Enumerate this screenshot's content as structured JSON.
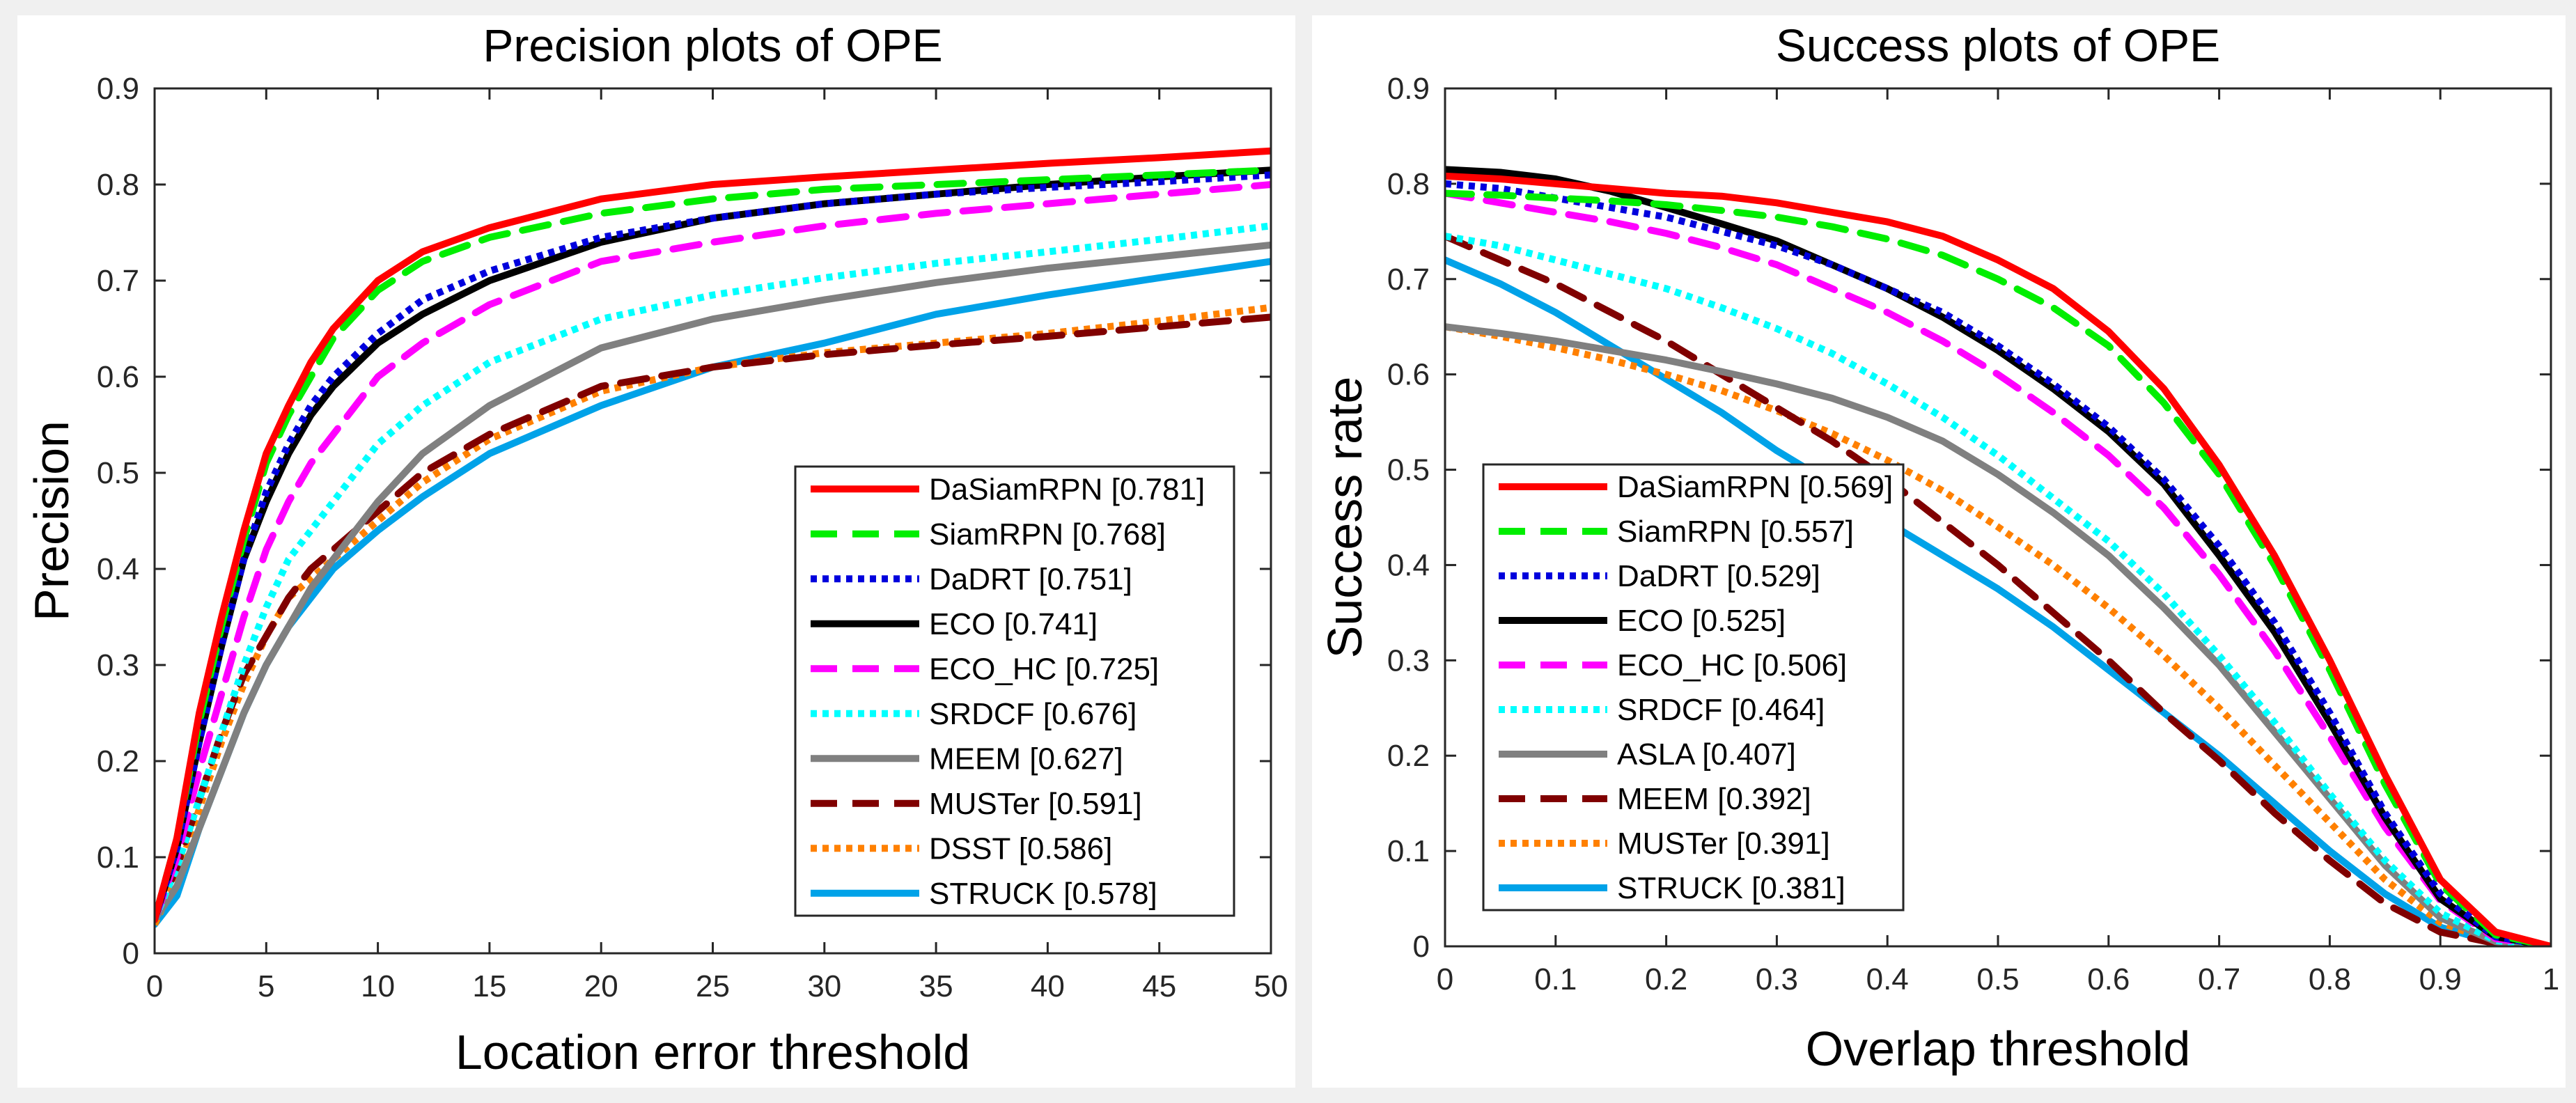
{
  "chart_data": [
    {
      "type": "line",
      "title": "Precision plots of OPE",
      "xlabel": "Location error threshold",
      "ylabel": "Precision",
      "xlim": [
        0,
        50
      ],
      "ylim": [
        0,
        0.9
      ],
      "xticks": [
        0,
        5,
        10,
        15,
        20,
        25,
        30,
        35,
        40,
        45,
        50
      ],
      "xtick_labels": [
        "0",
        "5",
        "10",
        "15",
        "20",
        "25",
        "30",
        "35",
        "40",
        "45",
        "50"
      ],
      "yticks": [
        0,
        0.1,
        0.2,
        0.3,
        0.4,
        0.5,
        0.6,
        0.7,
        0.8,
        0.9
      ],
      "ytick_labels": [
        "0",
        "0.1",
        "0.2",
        "0.3",
        "0.4",
        "0.5",
        "0.6",
        "0.7",
        "0.8",
        "0.9"
      ],
      "legend_position": "lower-right",
      "x": [
        0,
        1,
        2,
        3,
        4,
        5,
        6,
        7,
        8,
        10,
        12,
        15,
        20,
        25,
        30,
        35,
        40,
        45,
        50
      ],
      "series": [
        {
          "name": "DaSiamRPN",
          "legend": "DaSiamRPN [0.781]",
          "color": "#ff0000",
          "dash": "solid",
          "values": [
            0.035,
            0.12,
            0.25,
            0.35,
            0.44,
            0.52,
            0.57,
            0.615,
            0.65,
            0.7,
            0.73,
            0.755,
            0.785,
            0.8,
            0.808,
            0.815,
            0.822,
            0.828,
            0.835
          ]
        },
        {
          "name": "SiamRPN",
          "legend": "SiamRPN [0.768]",
          "color": "#00ee00",
          "dash": "dashed",
          "values": [
            0.035,
            0.12,
            0.24,
            0.34,
            0.43,
            0.51,
            0.56,
            0.6,
            0.64,
            0.69,
            0.72,
            0.745,
            0.77,
            0.785,
            0.795,
            0.8,
            0.805,
            0.81,
            0.815
          ]
        },
        {
          "name": "DaDRT",
          "legend": "DaDRT [0.751]",
          "color": "#0000dd",
          "dash": "dotted",
          "values": [
            0.035,
            0.11,
            0.22,
            0.32,
            0.41,
            0.48,
            0.53,
            0.57,
            0.6,
            0.645,
            0.68,
            0.71,
            0.745,
            0.765,
            0.78,
            0.79,
            0.797,
            0.803,
            0.81
          ]
        },
        {
          "name": "ECO",
          "legend": "ECO [0.741]",
          "color": "#000000",
          "dash": "solid",
          "values": [
            0.035,
            0.11,
            0.22,
            0.32,
            0.41,
            0.47,
            0.52,
            0.56,
            0.59,
            0.635,
            0.665,
            0.7,
            0.74,
            0.765,
            0.78,
            0.79,
            0.8,
            0.808,
            0.815
          ]
        },
        {
          "name": "ECO_HC",
          "legend": "ECO_HC [0.725]",
          "color": "#ff00ff",
          "dash": "dashed",
          "values": [
            0.035,
            0.1,
            0.19,
            0.27,
            0.35,
            0.42,
            0.47,
            0.51,
            0.54,
            0.6,
            0.635,
            0.675,
            0.72,
            0.74,
            0.757,
            0.77,
            0.78,
            0.79,
            0.8
          ]
        },
        {
          "name": "SRDCF",
          "legend": "SRDCF [0.676]",
          "color": "#00ffff",
          "dash": "dotted",
          "values": [
            0.035,
            0.09,
            0.16,
            0.23,
            0.3,
            0.36,
            0.41,
            0.44,
            0.47,
            0.53,
            0.57,
            0.615,
            0.66,
            0.685,
            0.703,
            0.718,
            0.73,
            0.743,
            0.757
          ]
        },
        {
          "name": "MEEM",
          "legend": "MEEM [0.627]",
          "color": "#808080",
          "dash": "solid",
          "values": [
            0.035,
            0.07,
            0.13,
            0.19,
            0.25,
            0.3,
            0.34,
            0.38,
            0.41,
            0.47,
            0.52,
            0.57,
            0.63,
            0.66,
            0.68,
            0.698,
            0.713,
            0.725,
            0.737
          ]
        },
        {
          "name": "MUSTer",
          "legend": "MUSTer [0.591]",
          "color": "#800000",
          "dash": "dashed",
          "values": [
            0.035,
            0.09,
            0.16,
            0.23,
            0.29,
            0.33,
            0.37,
            0.4,
            0.42,
            0.46,
            0.5,
            0.54,
            0.59,
            0.61,
            0.623,
            0.633,
            0.642,
            0.652,
            0.662
          ]
        },
        {
          "name": "DSST",
          "legend": "DSST [0.586]",
          "color": "#ff8000",
          "dash": "dotted",
          "values": [
            0.03,
            0.08,
            0.15,
            0.22,
            0.28,
            0.33,
            0.37,
            0.39,
            0.41,
            0.45,
            0.49,
            0.535,
            0.585,
            0.61,
            0.625,
            0.635,
            0.645,
            0.658,
            0.672
          ]
        },
        {
          "name": "STRUCK",
          "legend": "STRUCK [0.578]",
          "color": "#00a2e8",
          "dash": "solid",
          "values": [
            0.03,
            0.06,
            0.13,
            0.19,
            0.25,
            0.3,
            0.34,
            0.37,
            0.4,
            0.44,
            0.475,
            0.52,
            0.57,
            0.61,
            0.635,
            0.665,
            0.685,
            0.703,
            0.72
          ]
        }
      ]
    },
    {
      "type": "line",
      "title": "Success plots of OPE",
      "xlabel": "Overlap threshold",
      "ylabel": "Success rate",
      "xlim": [
        0,
        1
      ],
      "ylim": [
        0,
        0.9
      ],
      "xticks": [
        0,
        0.1,
        0.2,
        0.3,
        0.4,
        0.5,
        0.6,
        0.7,
        0.8,
        0.9,
        1
      ],
      "xtick_labels": [
        "0",
        "0.1",
        "0.2",
        "0.3",
        "0.4",
        "0.5",
        "0.6",
        "0.7",
        "0.8",
        "0.9",
        "1"
      ],
      "yticks": [
        0,
        0.1,
        0.2,
        0.3,
        0.4,
        0.5,
        0.6,
        0.7,
        0.8,
        0.9
      ],
      "ytick_labels": [
        "0",
        "0.1",
        "0.2",
        "0.3",
        "0.4",
        "0.5",
        "0.6",
        "0.7",
        "0.8",
        "0.9"
      ],
      "legend_position": "lower-left",
      "x": [
        0,
        0.05,
        0.1,
        0.15,
        0.2,
        0.25,
        0.3,
        0.35,
        0.4,
        0.45,
        0.5,
        0.55,
        0.6,
        0.65,
        0.7,
        0.75,
        0.8,
        0.85,
        0.9,
        0.95,
        1
      ],
      "series": [
        {
          "name": "DaSiamRPN",
          "legend": "DaSiamRPN [0.569]",
          "color": "#ff0000",
          "dash": "solid",
          "values": [
            0.808,
            0.805,
            0.8,
            0.795,
            0.79,
            0.787,
            0.78,
            0.77,
            0.76,
            0.745,
            0.72,
            0.69,
            0.645,
            0.585,
            0.505,
            0.41,
            0.3,
            0.18,
            0.07,
            0.015,
            0
          ]
        },
        {
          "name": "SiamRPN",
          "legend": "SiamRPN [0.557]",
          "color": "#00ee00",
          "dash": "dashed",
          "values": [
            0.79,
            0.788,
            0.785,
            0.782,
            0.778,
            0.772,
            0.765,
            0.755,
            0.742,
            0.725,
            0.7,
            0.67,
            0.63,
            0.57,
            0.495,
            0.4,
            0.29,
            0.17,
            0.065,
            0.012,
            0
          ]
        },
        {
          "name": "DaDRT",
          "legend": "DaDRT [0.529]",
          "color": "#0000dd",
          "dash": "dotted",
          "values": [
            0.8,
            0.795,
            0.785,
            0.775,
            0.765,
            0.75,
            0.735,
            0.715,
            0.69,
            0.665,
            0.63,
            0.59,
            0.545,
            0.49,
            0.42,
            0.34,
            0.245,
            0.14,
            0.055,
            0.01,
            0
          ]
        },
        {
          "name": "ECO",
          "legend": "ECO [0.525]",
          "color": "#000000",
          "dash": "solid",
          "values": [
            0.815,
            0.812,
            0.805,
            0.792,
            0.775,
            0.758,
            0.74,
            0.715,
            0.69,
            0.66,
            0.625,
            0.585,
            0.54,
            0.485,
            0.41,
            0.33,
            0.235,
            0.135,
            0.05,
            0.01,
            0
          ]
        },
        {
          "name": "ECO_HC",
          "legend": "ECO_HC [0.506]",
          "color": "#ff00ff",
          "dash": "dashed",
          "values": [
            0.79,
            0.78,
            0.77,
            0.76,
            0.748,
            0.733,
            0.715,
            0.69,
            0.665,
            0.635,
            0.6,
            0.56,
            0.515,
            0.46,
            0.39,
            0.31,
            0.22,
            0.125,
            0.048,
            0.008,
            0
          ]
        },
        {
          "name": "SRDCF",
          "legend": "SRDCF [0.464]",
          "color": "#00ffff",
          "dash": "dotted",
          "values": [
            0.745,
            0.735,
            0.72,
            0.705,
            0.69,
            0.67,
            0.648,
            0.622,
            0.59,
            0.555,
            0.515,
            0.47,
            0.425,
            0.37,
            0.305,
            0.235,
            0.16,
            0.09,
            0.035,
            0.006,
            0
          ]
        },
        {
          "name": "ASLA",
          "legend": "ASLA [0.407]",
          "color": "#808080",
          "dash": "solid",
          "values": [
            0.65,
            0.643,
            0.635,
            0.625,
            0.615,
            0.603,
            0.59,
            0.575,
            0.555,
            0.53,
            0.495,
            0.455,
            0.41,
            0.355,
            0.295,
            0.225,
            0.155,
            0.085,
            0.03,
            0.005,
            0
          ]
        },
        {
          "name": "MEEM",
          "legend": "MEEM [0.392]",
          "color": "#800000",
          "dash": "dashed",
          "values": [
            0.745,
            0.72,
            0.695,
            0.665,
            0.635,
            0.6,
            0.565,
            0.53,
            0.49,
            0.445,
            0.4,
            0.35,
            0.3,
            0.245,
            0.195,
            0.14,
            0.09,
            0.045,
            0.015,
            0.003,
            0
          ]
        },
        {
          "name": "MUSTer",
          "legend": "MUSTer [0.391]",
          "color": "#ff8000",
          "dash": "dotted",
          "values": [
            0.65,
            0.64,
            0.628,
            0.615,
            0.6,
            0.583,
            0.562,
            0.538,
            0.51,
            0.478,
            0.44,
            0.4,
            0.355,
            0.305,
            0.25,
            0.19,
            0.13,
            0.07,
            0.025,
            0.004,
            0
          ]
        },
        {
          "name": "STRUCK",
          "legend": "STRUCK [0.381]",
          "color": "#00a2e8",
          "dash": "solid",
          "values": [
            0.72,
            0.695,
            0.665,
            0.63,
            0.595,
            0.56,
            0.52,
            0.485,
            0.445,
            0.41,
            0.375,
            0.335,
            0.29,
            0.245,
            0.2,
            0.15,
            0.1,
            0.055,
            0.02,
            0.004,
            0
          ]
        }
      ]
    }
  ]
}
